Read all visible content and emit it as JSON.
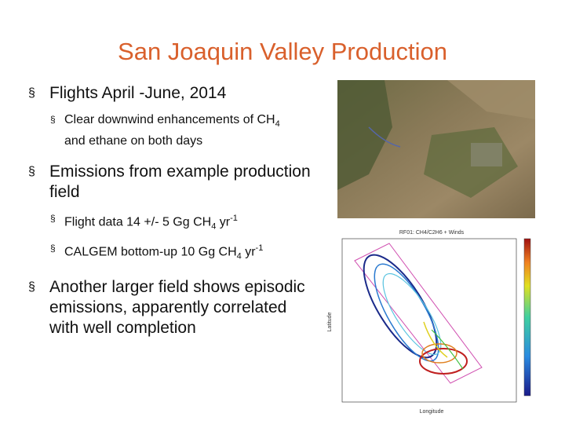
{
  "title": "San Joaquin Valley Production",
  "bullets": [
    {
      "text": "Flights April -June, 2014",
      "sub": [
        {
          "parts": [
            "Clear downwind enhancements of CH",
            "4",
            " and ethane on both days"
          ]
        }
      ]
    },
    {
      "text": "Emissions from example production field",
      "sub": [
        {
          "parts": [
            "Flight data 14 +/- 5 Gg CH",
            "4",
            " yr",
            "-1"
          ]
        },
        {
          "parts": [
            "CALGEM bottom-up 10 Gg CH",
            "4",
            " yr",
            "-1"
          ]
        }
      ]
    },
    {
      "text": "Another larger field shows episodic emissions, apparently correlated with well completion"
    }
  ],
  "figure": {
    "title": "RF01: CH4/C2H6 + Winds",
    "x_label": "Longitude",
    "y_label": "Latitude"
  }
}
